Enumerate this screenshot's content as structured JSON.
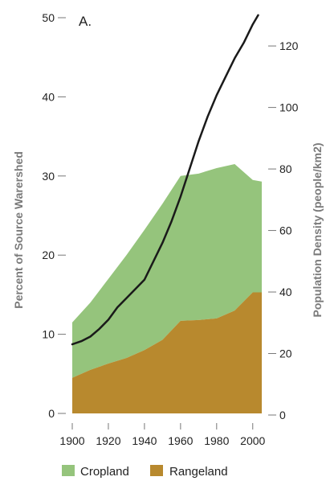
{
  "chart_data": {
    "type": "area",
    "panel_label": "A.",
    "x": [
      1900,
      1910,
      1920,
      1930,
      1940,
      1950,
      1960,
      1970,
      1980,
      1990,
      2000,
      2005
    ],
    "series": [
      {
        "name": "Rangeland",
        "kind": "area",
        "axis": "left",
        "color": "#b8892e",
        "values": [
          4.5,
          5.5,
          6.3,
          7.0,
          8.0,
          9.3,
          11.7,
          11.8,
          12.0,
          13.0,
          15.3,
          15.3
        ]
      },
      {
        "name": "Cropland",
        "kind": "area",
        "axis": "left",
        "stacked_top": [
          11.5,
          14.0,
          17.0,
          20.0,
          23.2,
          26.5,
          30.0,
          30.3,
          31.0,
          31.5,
          29.5,
          29.3
        ],
        "color": "#95c47c"
      },
      {
        "kind": "line",
        "axis": "right",
        "color": "#1a1a1a",
        "x": [
          1900,
          1905,
          1910,
          1915,
          1920,
          1925,
          1930,
          1935,
          1940,
          1945,
          1950,
          1955,
          1960,
          1965,
          1970,
          1975,
          1980,
          1985,
          1990,
          1995,
          2000,
          2003
        ],
        "values": [
          23,
          24,
          25.5,
          28,
          31,
          35,
          38,
          41,
          44,
          50,
          56,
          63,
          71,
          80,
          89,
          97,
          104,
          110,
          116,
          121,
          127,
          130
        ]
      }
    ],
    "xlabel": "",
    "ylabel_left": "Percent of Source Warershed",
    "ylabel_right": "Population Density (people/km2)",
    "xlim": [
      1900,
      2005
    ],
    "ylim_left": [
      0,
      50
    ],
    "ylim_right": [
      0,
      125
    ],
    "xticks": [
      "1900",
      "1920",
      "1940",
      "1960",
      "1980",
      "2000"
    ],
    "yticks_left": [
      "0",
      "10",
      "20",
      "30",
      "40",
      "50"
    ],
    "yticks_right": [
      "0",
      "20",
      "40",
      "60",
      "80",
      "100",
      "120"
    ],
    "legend": {
      "placement": "bottom",
      "items": [
        {
          "label": "Cropland",
          "color": "#95c47c"
        },
        {
          "label": "Rangeland",
          "color": "#b8892e"
        }
      ]
    },
    "grid": false
  }
}
